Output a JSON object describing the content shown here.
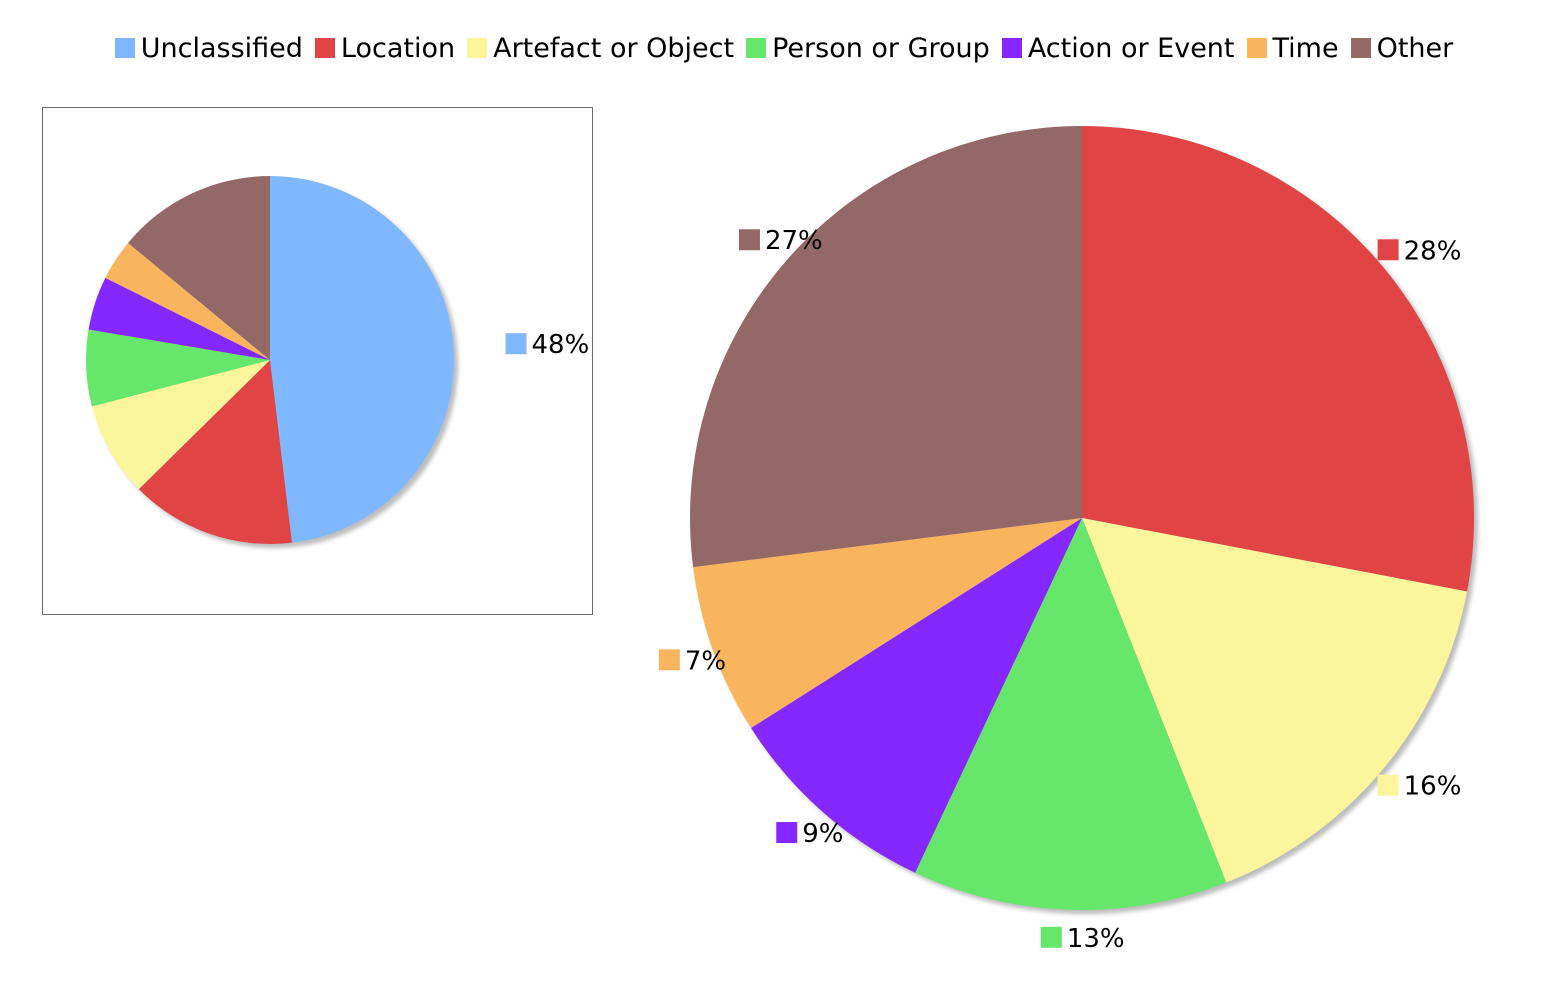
{
  "legend": {
    "placement": "top-center",
    "items": [
      {
        "label": "Unclassified",
        "color": "#80b8ff"
      },
      {
        "label": "Location",
        "color": "#e04444"
      },
      {
        "label": "Artefact or Object",
        "color": "#fbf69c"
      },
      {
        "label": "Person or Group",
        "color": "#66e66a"
      },
      {
        "label": "Action or Event",
        "color": "#8428ff"
      },
      {
        "label": "Time",
        "color": "#f9b45e"
      },
      {
        "label": "Other",
        "color": "#956868"
      }
    ]
  },
  "chart_data": [
    {
      "type": "pie",
      "categories": [
        "Unclassified",
        "Location",
        "Artefact or Object",
        "Person or Group",
        "Action or Event",
        "Time",
        "Other"
      ],
      "values": [
        48,
        14.5,
        8.3,
        6.7,
        4.7,
        3.6,
        14.0
      ],
      "colors": [
        "#80b8ff",
        "#e04444",
        "#fbf69c",
        "#66e66a",
        "#8428ff",
        "#f9b45e",
        "#956868"
      ],
      "data_labels": [
        "48%",
        "",
        "",
        "",
        "",
        "",
        ""
      ]
    },
    {
      "type": "pie",
      "categories": [
        "Location",
        "Artefact or Object",
        "Person or Group",
        "Action or Event",
        "Time",
        "Other"
      ],
      "values": [
        28,
        16,
        13,
        9,
        7,
        27
      ],
      "colors": [
        "#e04444",
        "#fbf69c",
        "#66e66a",
        "#8428ff",
        "#f9b45e",
        "#956868"
      ],
      "data_labels": [
        "28%",
        "16%",
        "13%",
        "9%",
        "7%",
        "27%"
      ]
    }
  ]
}
